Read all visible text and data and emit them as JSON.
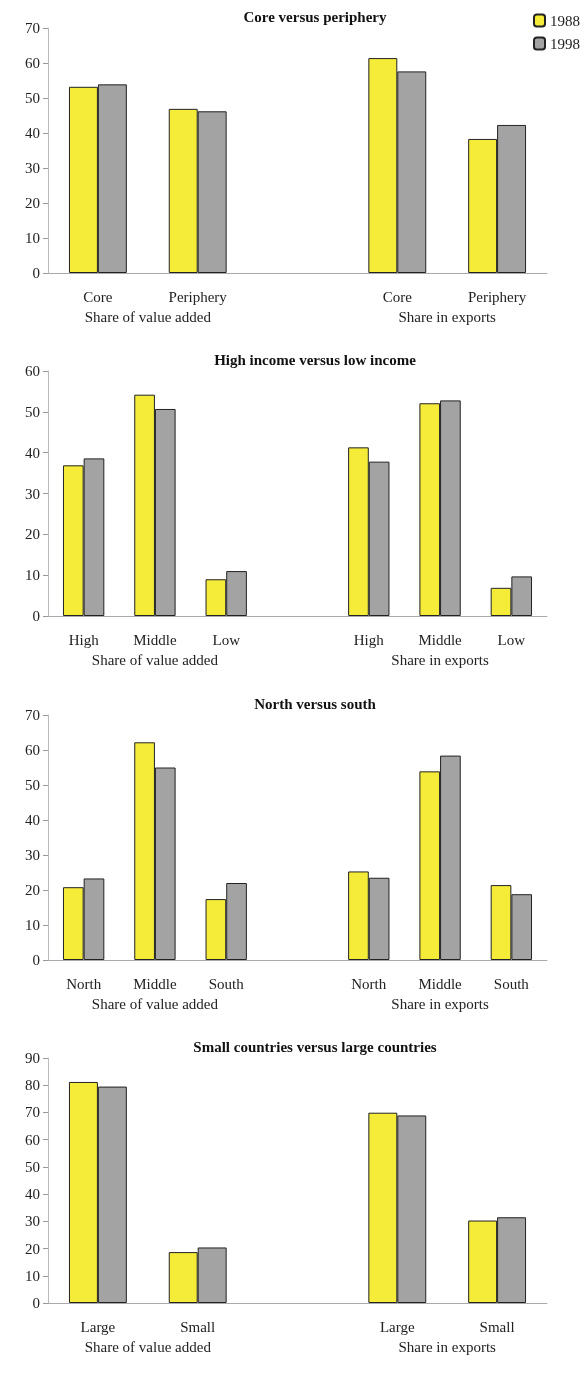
{
  "chart_data": [
    {
      "type": "bar",
      "title": "Core versus periphery",
      "categories": [
        "Core",
        "Periphery",
        null,
        "Core",
        "Periphery"
      ],
      "annotations": [
        "Share of value added",
        "Share in exports"
      ],
      "ylim": [
        0,
        70
      ],
      "yticks": [
        0,
        10,
        20,
        30,
        40,
        50,
        60,
        70
      ],
      "legend": "top right",
      "series": [
        {
          "name": "1988",
          "color": "#f5ec3a",
          "values": [
            53.2,
            46.9,
            null,
            61.4,
            38.3
          ]
        },
        {
          "name": "1998",
          "color": "#a3a3a3",
          "values": [
            53.9,
            46.2,
            null,
            57.6,
            42.3
          ]
        }
      ]
    },
    {
      "type": "bar",
      "title": "High income versus low income",
      "categories": [
        "High",
        "Middle",
        "Low",
        null,
        "High",
        "Middle",
        "Low"
      ],
      "annotations": [
        "Share of value added",
        "Share in exports"
      ],
      "ylim": [
        0,
        60
      ],
      "yticks": [
        0,
        10,
        20,
        30,
        40,
        50,
        60
      ],
      "series": [
        {
          "color": "#f5ec3a",
          "values": [
            36.9,
            54.2,
            9.0,
            null,
            41.3,
            52.1,
            6.9
          ]
        },
        {
          "color": "#a3a3a3",
          "values": [
            38.6,
            50.7,
            11.0,
            null,
            37.8,
            52.8,
            9.7
          ]
        }
      ]
    },
    {
      "type": "bar",
      "title": "North versus south",
      "categories": [
        "North",
        "Middle",
        "South",
        null,
        "North",
        "Middle",
        "South"
      ],
      "annotations": [
        "Share of value added",
        "Share in exports"
      ],
      "ylim": [
        0,
        70
      ],
      "yticks": [
        0,
        10,
        20,
        30,
        40,
        50,
        60,
        70
      ],
      "series": [
        {
          "color": "#f5ec3a",
          "values": [
            20.8,
            62.2,
            17.4,
            null,
            25.3,
            53.9,
            21.4
          ]
        },
        {
          "color": "#a3a3a3",
          "values": [
            23.3,
            55.0,
            22.0,
            null,
            23.5,
            58.4,
            18.8
          ]
        }
      ]
    },
    {
      "type": "bar",
      "title": "Small countries versus large countries",
      "categories": [
        "Large",
        "Small",
        null,
        "Large",
        "Small"
      ],
      "annotations": [
        "Share of value added",
        "Share in exports"
      ],
      "ylim": [
        0,
        90
      ],
      "yticks": [
        0,
        10,
        20,
        30,
        40,
        50,
        60,
        70,
        80,
        90
      ],
      "series": [
        {
          "color": "#f5ec3a",
          "values": [
            81.2,
            18.7,
            null,
            69.9,
            30.3
          ]
        },
        {
          "color": "#a3a3a3",
          "values": [
            79.5,
            20.4,
            null,
            68.9,
            31.5
          ]
        }
      ]
    }
  ]
}
